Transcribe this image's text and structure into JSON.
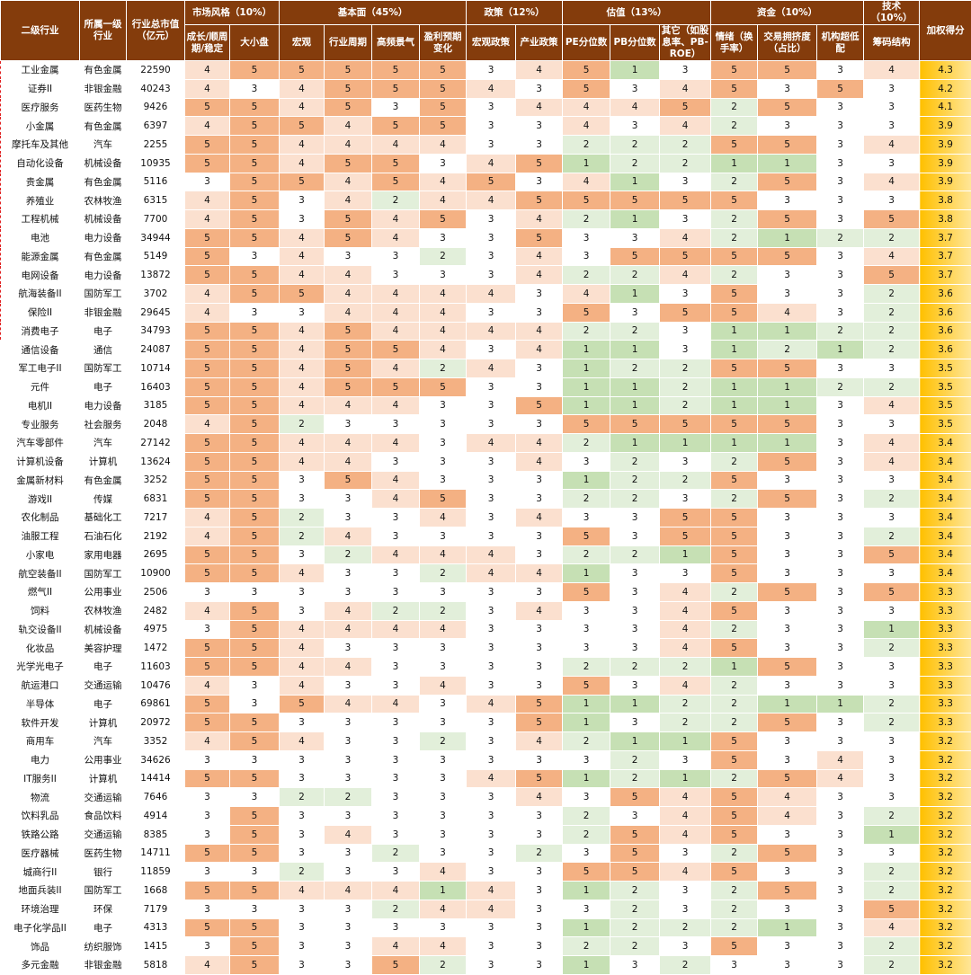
{
  "table": {
    "header_groups": [
      "市场风格（10%）",
      "基本面（45%）",
      "政策（12%）",
      "估值（13%）",
      "资金（10%）",
      "技术（10%）"
    ],
    "columns": [
      "二级行业",
      "所属一级行业",
      "行业总市值（亿元）",
      "成长/顺周期/稳定",
      "大小盘",
      "宏观",
      "行业周期",
      "高频景气",
      "盈利预期变化",
      "宏观政策",
      "产业政策",
      "PE分位数",
      "PB分位数",
      "其它（如股息率、PB-ROE）",
      "情绪（换手率）",
      "交易拥挤度（占比）",
      "机构超低配",
      "筹码结构",
      "加权得分"
    ],
    "rows": [
      [
        "工业金属",
        "有色金属",
        22590,
        4,
        5,
        5,
        5,
        5,
        5,
        3,
        4,
        5,
        1,
        3,
        5,
        5,
        3,
        4,
        4.3
      ],
      [
        "证券II",
        "非银金融",
        40243,
        4,
        3,
        4,
        5,
        5,
        5,
        4,
        3,
        5,
        3,
        4,
        5,
        3,
        5,
        3,
        4.2
      ],
      [
        "医疗服务",
        "医药生物",
        9426,
        5,
        5,
        4,
        5,
        3,
        5,
        3,
        4,
        4,
        4,
        5,
        2,
        5,
        3,
        3,
        4.1
      ],
      [
        "小金属",
        "有色金属",
        6397,
        4,
        5,
        5,
        4,
        5,
        5,
        3,
        3,
        4,
        3,
        4,
        2,
        3,
        3,
        3,
        3.9
      ],
      [
        "摩托车及其他",
        "汽车",
        2255,
        5,
        5,
        4,
        4,
        4,
        4,
        3,
        3,
        2,
        2,
        2,
        5,
        5,
        3,
        4,
        3.9
      ],
      [
        "自动化设备",
        "机械设备",
        10935,
        5,
        5,
        4,
        5,
        5,
        3,
        4,
        5,
        1,
        2,
        2,
        1,
        1,
        3,
        3,
        3.9
      ],
      [
        "贵金属",
        "有色金属",
        5116,
        3,
        5,
        5,
        4,
        5,
        4,
        5,
        3,
        4,
        1,
        3,
        2,
        5,
        3,
        4,
        3.9
      ],
      [
        "养殖业",
        "农林牧渔",
        6315,
        4,
        5,
        3,
        4,
        2,
        4,
        4,
        5,
        5,
        5,
        5,
        5,
        3,
        3,
        3,
        3.8
      ],
      [
        "工程机械",
        "机械设备",
        7700,
        4,
        5,
        3,
        5,
        4,
        5,
        3,
        4,
        2,
        1,
        3,
        2,
        5,
        3,
        5,
        3.8
      ],
      [
        "电池",
        "电力设备",
        34944,
        5,
        5,
        4,
        5,
        4,
        3,
        3,
        5,
        3,
        3,
        4,
        2,
        1,
        2,
        2,
        3.7
      ],
      [
        "能源金属",
        "有色金属",
        5149,
        5,
        3,
        4,
        3,
        3,
        2,
        3,
        4,
        3,
        5,
        5,
        5,
        5,
        3,
        4,
        3.7
      ],
      [
        "电网设备",
        "电力设备",
        13872,
        5,
        5,
        4,
        4,
        3,
        3,
        3,
        4,
        2,
        2,
        4,
        2,
        3,
        3,
        5,
        3.7
      ],
      [
        "航海装备II",
        "国防军工",
        3702,
        4,
        5,
        5,
        4,
        4,
        4,
        4,
        3,
        4,
        1,
        3,
        5,
        3,
        3,
        2,
        3.6
      ],
      [
        "保险II",
        "非银金融",
        29645,
        4,
        3,
        3,
        4,
        4,
        4,
        3,
        3,
        5,
        3,
        5,
        5,
        4,
        3,
        2,
        3.6
      ],
      [
        "消费电子",
        "电子",
        34793,
        5,
        5,
        4,
        5,
        4,
        4,
        4,
        4,
        2,
        2,
        3,
        1,
        1,
        2,
        2,
        3.6
      ],
      [
        "通信设备",
        "通信",
        24087,
        5,
        5,
        4,
        5,
        5,
        4,
        3,
        4,
        1,
        1,
        3,
        1,
        2,
        1,
        2,
        3.6
      ],
      [
        "军工电子II",
        "国防军工",
        10714,
        5,
        5,
        4,
        5,
        4,
        2,
        4,
        3,
        1,
        2,
        2,
        5,
        5,
        3,
        3,
        3.5
      ],
      [
        "元件",
        "电子",
        16403,
        5,
        5,
        4,
        5,
        5,
        5,
        3,
        3,
        1,
        1,
        2,
        1,
        1,
        2,
        2,
        3.5
      ],
      [
        "电机II",
        "电力设备",
        3185,
        5,
        5,
        4,
        4,
        4,
        3,
        3,
        5,
        1,
        1,
        2,
        1,
        1,
        3,
        4,
        3.5
      ],
      [
        "专业服务",
        "社会服务",
        2048,
        4,
        5,
        2,
        3,
        3,
        3,
        3,
        3,
        5,
        5,
        5,
        5,
        5,
        3,
        3,
        3.5
      ],
      [
        "汽车零部件",
        "汽车",
        27142,
        5,
        5,
        4,
        4,
        4,
        3,
        4,
        4,
        2,
        1,
        1,
        1,
        1,
        3,
        4,
        3.4
      ],
      [
        "计算机设备",
        "计算机",
        13624,
        5,
        5,
        4,
        4,
        3,
        3,
        3,
        4,
        3,
        2,
        3,
        2,
        5,
        3,
        4,
        3.4
      ],
      [
        "金属新材料",
        "有色金属",
        3252,
        5,
        5,
        3,
        5,
        4,
        3,
        3,
        3,
        1,
        2,
        2,
        5,
        3,
        3,
        3,
        3.4
      ],
      [
        "游戏II",
        "传媒",
        6831,
        5,
        5,
        3,
        3,
        4,
        5,
        3,
        3,
        2,
        2,
        3,
        2,
        5,
        3,
        2,
        3.4
      ],
      [
        "农化制品",
        "基础化工",
        7217,
        4,
        5,
        2,
        3,
        3,
        4,
        3,
        4,
        3,
        3,
        5,
        5,
        3,
        3,
        3,
        3.4
      ],
      [
        "油服工程",
        "石油石化",
        2192,
        4,
        5,
        2,
        4,
        3,
        3,
        3,
        3,
        5,
        3,
        5,
        5,
        3,
        3,
        2,
        3.4
      ],
      [
        "小家电",
        "家用电器",
        2695,
        5,
        5,
        3,
        2,
        4,
        4,
        4,
        3,
        2,
        2,
        1,
        5,
        3,
        3,
        5,
        3.4
      ],
      [
        "航空装备II",
        "国防军工",
        10900,
        5,
        5,
        4,
        3,
        3,
        2,
        4,
        4,
        1,
        3,
        3,
        5,
        3,
        3,
        3,
        3.4
      ],
      [
        "燃气II",
        "公用事业",
        2506,
        3,
        3,
        3,
        3,
        3,
        3,
        3,
        3,
        5,
        3,
        4,
        2,
        5,
        3,
        5,
        3.3
      ],
      [
        "饲料",
        "农林牧渔",
        2482,
        4,
        5,
        3,
        4,
        2,
        2,
        3,
        4,
        3,
        3,
        4,
        5,
        3,
        3,
        3,
        3.3
      ],
      [
        "轨交设备II",
        "机械设备",
        4975,
        3,
        5,
        4,
        4,
        4,
        4,
        3,
        3,
        3,
        3,
        4,
        2,
        3,
        3,
        1,
        3.3
      ],
      [
        "化妆品",
        "美容护理",
        1472,
        5,
        5,
        4,
        3,
        3,
        3,
        3,
        3,
        3,
        3,
        4,
        5,
        3,
        3,
        2,
        3.3
      ],
      [
        "光学光电子",
        "电子",
        11603,
        5,
        5,
        4,
        4,
        3,
        3,
        3,
        3,
        2,
        2,
        2,
        1,
        5,
        3,
        3,
        3.3
      ],
      [
        "航运港口",
        "交通运输",
        10476,
        4,
        3,
        4,
        3,
        3,
        4,
        3,
        3,
        5,
        3,
        4,
        2,
        3,
        3,
        3,
        3.3
      ],
      [
        "半导体",
        "电子",
        69861,
        5,
        3,
        5,
        4,
        4,
        3,
        4,
        5,
        1,
        1,
        2,
        2,
        1,
        1,
        2,
        3.3
      ],
      [
        "软件开发",
        "计算机",
        20972,
        5,
        5,
        3,
        3,
        3,
        3,
        3,
        5,
        1,
        3,
        2,
        2,
        5,
        3,
        2,
        3.3
      ],
      [
        "商用车",
        "汽车",
        3352,
        4,
        5,
        4,
        3,
        3,
        2,
        3,
        4,
        2,
        1,
        1,
        5,
        3,
        3,
        3,
        3.2
      ],
      [
        "电力",
        "公用事业",
        34626,
        3,
        3,
        3,
        3,
        3,
        3,
        3,
        3,
        3,
        2,
        3,
        5,
        3,
        4,
        3,
        3.2
      ],
      [
        "IT服务II",
        "计算机",
        14414,
        5,
        5,
        3,
        3,
        3,
        3,
        4,
        5,
        1,
        2,
        1,
        2,
        5,
        4,
        3,
        3.2
      ],
      [
        "物流",
        "交通运输",
        7646,
        3,
        3,
        2,
        2,
        3,
        3,
        3,
        4,
        3,
        5,
        4,
        5,
        4,
        3,
        3,
        3.2
      ],
      [
        "饮料乳品",
        "食品饮料",
        4914,
        3,
        5,
        3,
        3,
        3,
        3,
        3,
        3,
        2,
        3,
        4,
        5,
        4,
        3,
        2,
        3.2
      ],
      [
        "铁路公路",
        "交通运输",
        8385,
        3,
        5,
        3,
        4,
        3,
        3,
        3,
        3,
        2,
        5,
        4,
        5,
        3,
        3,
        1,
        3.2
      ],
      [
        "医疗器械",
        "医药生物",
        14711,
        5,
        5,
        3,
        3,
        2,
        3,
        3,
        2,
        3,
        5,
        3,
        2,
        5,
        3,
        3,
        3.2
      ],
      [
        "城商行II",
        "银行",
        11859,
        3,
        3,
        2,
        3,
        3,
        4,
        3,
        3,
        5,
        5,
        4,
        5,
        3,
        3,
        2,
        3.2
      ],
      [
        "地面兵装II",
        "国防军工",
        1668,
        5,
        5,
        4,
        4,
        4,
        1,
        4,
        3,
        1,
        2,
        3,
        2,
        5,
        3,
        2,
        3.2
      ],
      [
        "环境治理",
        "环保",
        7179,
        3,
        3,
        3,
        3,
        2,
        4,
        4,
        3,
        3,
        2,
        3,
        2,
        3,
        3,
        5,
        3.2
      ],
      [
        "电子化学品II",
        "电子",
        4313,
        5,
        5,
        3,
        3,
        3,
        3,
        3,
        3,
        1,
        2,
        2,
        2,
        1,
        3,
        4,
        3.2
      ],
      [
        "饰品",
        "纺织服饰",
        1415,
        3,
        5,
        3,
        3,
        4,
        4,
        3,
        3,
        2,
        2,
        3,
        5,
        3,
        3,
        2,
        3.2
      ],
      [
        "多元金融",
        "非银金融",
        5818,
        4,
        5,
        3,
        3,
        5,
        2,
        3,
        3,
        1,
        3,
        2,
        3,
        3,
        3,
        2,
        3.2
      ]
    ]
  }
}
